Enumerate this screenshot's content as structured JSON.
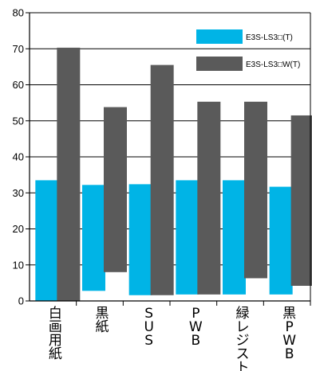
{
  "chart_data": {
    "type": "bar",
    "categories": [
      "白画用紙",
      "黒紙",
      "SUS",
      "PWB",
      "緑レジスト",
      "黒PWB"
    ],
    "series": [
      {
        "name": "E3S-LS3□(T)",
        "color": "#00b4e6",
        "low": [
          0,
          2.8,
          1.6,
          1.8,
          1.8,
          1.8
        ],
        "high": [
          33.5,
          32.2,
          32.4,
          33.5,
          33.5,
          31.7
        ]
      },
      {
        "name": "E3S-LS3□W(T)",
        "color": "#5a5a5a",
        "low": [
          0,
          8,
          1.6,
          1.8,
          6.3,
          4.2
        ],
        "high": [
          70.3,
          53.8,
          65.5,
          55.3,
          55.3,
          51.5
        ]
      }
    ],
    "y_ticks": [
      "0",
      "10",
      "20",
      "30",
      "40",
      "50",
      "60",
      "70",
      "80"
    ],
    "ylim": [
      0,
      80
    ],
    "grid": true,
    "legend_position": "top-right"
  }
}
